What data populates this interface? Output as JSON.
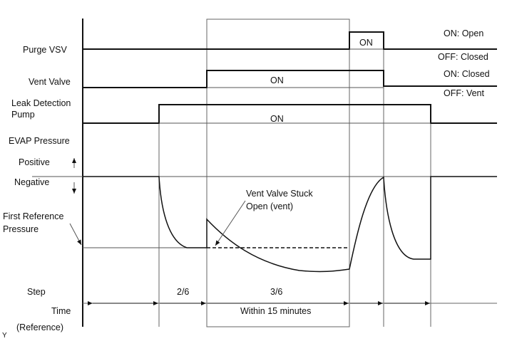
{
  "signals": {
    "purge_vsv": {
      "label": "Purge VSV",
      "state_label": "ON",
      "on_meaning": "ON: Open",
      "off_meaning": "OFF: Closed"
    },
    "vent_valve": {
      "label": "Vent Valve",
      "state_label": "ON",
      "on_meaning": "ON: Closed",
      "off_meaning": "OFF: Vent"
    },
    "leak_pump": {
      "label_line1": "Leak Detection",
      "label_line2": "Pump",
      "state_label": "ON"
    },
    "evap": {
      "label": "EVAP Pressure",
      "positive": "Positive",
      "negative": "Negative",
      "ref_line1": "First Reference",
      "ref_line2": "Pressure",
      "annotation_line1": "Vent Valve Stuck",
      "annotation_line2": "Open (vent)"
    }
  },
  "footer": {
    "step_label": "Step",
    "steps": [
      "2/6",
      "3/6"
    ],
    "time_label": "Time",
    "time_value": "Within 15 minutes",
    "reference_label": "(Reference)",
    "corner_mark": "Y"
  }
}
